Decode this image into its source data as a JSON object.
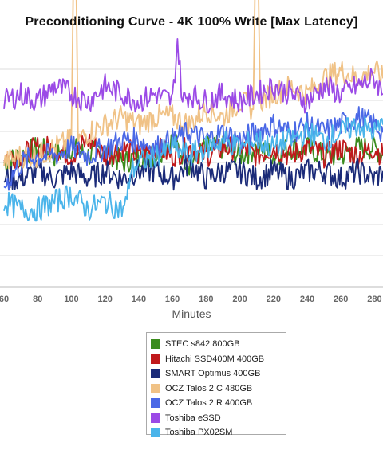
{
  "colors": {
    "STEC s842 800GB": "#3b8c1e",
    "Hitachi SSD400M 400GB": "#c0191c",
    "SMART Optimus 400GB": "#1a2a78",
    "OCZ Talos 2 C 480GB": "#f0c286",
    "OCZ Talos 2 R 400GB": "#4a68e6",
    "Toshiba eSSD": "#9b4ae6",
    "Toshiba PX02SM": "#4ab4ea"
  },
  "chart_data": {
    "type": "line",
    "title": "Preconditioning Curve - 4K 100% Write [Max Latency]",
    "xlabel": "Minutes",
    "ylabel": "",
    "xlim": [
      60,
      285
    ],
    "x_ticks": [
      "60",
      "80",
      "100",
      "120",
      "140",
      "160",
      "180",
      "200",
      "220",
      "240",
      "260",
      "280"
    ],
    "grid": "horizontal",
    "legend_position": "bottom",
    "series": [
      {
        "name": "STEC s842 800GB",
        "x": [
          60,
          70,
          80,
          90,
          100,
          110,
          120,
          130,
          140,
          150,
          160,
          170,
          180,
          190,
          200,
          210,
          220,
          230,
          240,
          250,
          260,
          270,
          280,
          285
        ],
        "values": [
          16,
          17,
          18,
          17,
          18,
          17,
          18,
          16,
          17,
          17,
          19,
          16,
          18,
          18,
          17,
          18,
          17,
          18,
          18,
          17,
          17,
          18,
          18,
          17
        ]
      },
      {
        "name": "Hitachi SSD400M 400GB",
        "x": [
          60,
          70,
          80,
          90,
          100,
          110,
          120,
          130,
          140,
          150,
          160,
          170,
          180,
          190,
          200,
          210,
          220,
          230,
          240,
          250,
          260,
          270,
          280,
          285
        ],
        "values": [
          17,
          17,
          18,
          18,
          17,
          19,
          17,
          18,
          17,
          18,
          17,
          18,
          17,
          18,
          18,
          17,
          18,
          17,
          18,
          17,
          18,
          17,
          18,
          17
        ]
      },
      {
        "name": "SMART Optimus 400GB",
        "x": [
          60,
          70,
          80,
          90,
          100,
          110,
          120,
          130,
          140,
          150,
          160,
          170,
          180,
          190,
          200,
          210,
          220,
          230,
          240,
          250,
          260,
          270,
          280,
          285
        ],
        "values": [
          14,
          14,
          15,
          14,
          15,
          14,
          15,
          14,
          15,
          15,
          14,
          16,
          14,
          15,
          15,
          14,
          15,
          14,
          15,
          15,
          14,
          15,
          14,
          15
        ]
      },
      {
        "name": "OCZ Talos 2 C 480GB",
        "x": [
          60,
          70,
          80,
          90,
          100,
          102,
          104,
          110,
          120,
          130,
          140,
          150,
          160,
          170,
          180,
          190,
          200,
          208,
          210,
          212,
          220,
          230,
          240,
          250,
          260,
          270,
          280,
          285
        ],
        "values": [
          16,
          17,
          17,
          18,
          19,
          55,
          19,
          20,
          21,
          22,
          21,
          22,
          22,
          21,
          23,
          22,
          24,
          23,
          55,
          24,
          25,
          26,
          25,
          27,
          28,
          27,
          28,
          27
        ]
      },
      {
        "name": "OCZ Talos 2 R 400GB",
        "x": [
          60,
          70,
          80,
          90,
          100,
          110,
          120,
          130,
          140,
          150,
          160,
          170,
          180,
          190,
          200,
          210,
          220,
          230,
          240,
          250,
          260,
          270,
          280,
          285
        ],
        "values": [
          13,
          16,
          17,
          17,
          18,
          17,
          18,
          19,
          19,
          18,
          19,
          20,
          19,
          20,
          19,
          20,
          21,
          20,
          21,
          20,
          21,
          22,
          21,
          20
        ]
      },
      {
        "name": "Toshiba eSSD",
        "x": [
          60,
          70,
          80,
          90,
          100,
          110,
          120,
          130,
          140,
          150,
          160,
          163,
          166,
          170,
          180,
          190,
          200,
          210,
          220,
          230,
          240,
          250,
          260,
          270,
          280,
          285
        ],
        "values": [
          24,
          25,
          24,
          26,
          25,
          24,
          26,
          25,
          24,
          25,
          24,
          32,
          24,
          25,
          24,
          25,
          24,
          25,
          26,
          25,
          24,
          26,
          25,
          26,
          27,
          25
        ]
      },
      {
        "name": "Toshiba PX02SM",
        "x": [
          60,
          70,
          80,
          90,
          100,
          110,
          120,
          130,
          133,
          135,
          140,
          150,
          160,
          170,
          180,
          190,
          200,
          210,
          220,
          230,
          240,
          250,
          260,
          270,
          280,
          285
        ],
        "values": [
          11,
          10,
          10,
          11,
          12,
          10,
          11,
          10,
          11,
          15,
          16,
          17,
          18,
          17,
          18,
          19,
          18,
          19,
          18,
          19,
          20,
          19,
          20,
          21,
          20,
          21
        ]
      }
    ]
  }
}
